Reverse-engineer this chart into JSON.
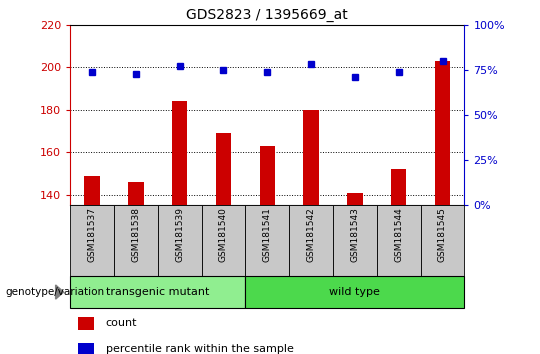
{
  "title": "GDS2823 / 1395669_at",
  "samples": [
    "GSM181537",
    "GSM181538",
    "GSM181539",
    "GSM181540",
    "GSM181541",
    "GSM181542",
    "GSM181543",
    "GSM181544",
    "GSM181545"
  ],
  "counts": [
    149,
    146,
    184,
    169,
    163,
    180,
    141,
    152,
    203
  ],
  "percentiles": [
    74,
    73,
    77,
    75,
    74,
    78,
    71,
    74,
    80
  ],
  "ylim_left": [
    135,
    220
  ],
  "ylim_right": [
    0,
    100
  ],
  "yticks_left": [
    140,
    160,
    180,
    200,
    220
  ],
  "yticks_right": [
    0,
    25,
    50,
    75,
    100
  ],
  "groups": [
    {
      "label": "transgenic mutant",
      "start": 0,
      "end": 4,
      "color": "#90EE90"
    },
    {
      "label": "wild type",
      "start": 4,
      "end": 9,
      "color": "#4CD94C"
    }
  ],
  "bar_color": "#CC0000",
  "dot_color": "#0000CC",
  "tick_label_bg": "#C8C8C8",
  "genotype_label": "genotype/variation",
  "legend_items": [
    {
      "label": "count",
      "color": "#CC0000"
    },
    {
      "label": "percentile rank within the sample",
      "color": "#0000CC"
    }
  ]
}
